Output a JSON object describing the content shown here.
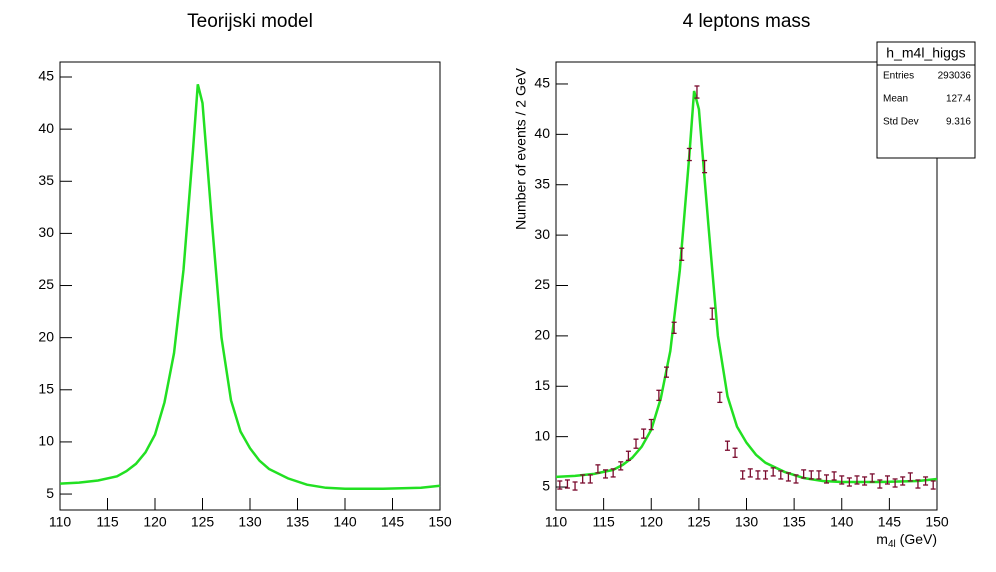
{
  "chart_data": [
    {
      "type": "line",
      "title": "Teorijski model",
      "xlim": [
        110,
        150
      ],
      "xticks": [
        110,
        115,
        120,
        125,
        130,
        135,
        140,
        145,
        150
      ],
      "ylim": [
        3.47,
        46.44
      ],
      "yticks": [
        5,
        10,
        15,
        20,
        25,
        30,
        35,
        40,
        45
      ],
      "series": [
        {
          "color": "#22e022",
          "x": [
            110,
            112,
            114,
            116,
            117,
            118,
            119,
            120,
            121,
            122,
            123,
            124,
            124.5,
            125,
            126,
            127,
            128,
            129,
            130,
            131,
            132,
            134,
            136,
            138,
            140,
            142,
            144,
            146,
            148,
            150
          ],
          "values": [
            6.0,
            6.1,
            6.3,
            6.7,
            7.2,
            7.9,
            9.0,
            10.7,
            13.8,
            18.5,
            26.5,
            38.0,
            44.3,
            42.5,
            31.0,
            20.0,
            14.0,
            11.0,
            9.4,
            8.2,
            7.4,
            6.5,
            5.9,
            5.6,
            5.5,
            5.5,
            5.5,
            5.55,
            5.6,
            5.8
          ]
        }
      ]
    },
    {
      "type": "line",
      "title": "4 leptons mass",
      "x_label": [
        "m",
        "4l",
        " (GeV)"
      ],
      "y_label": "Number of events / 2 GeV",
      "xlim": [
        110,
        150
      ],
      "xticks": [
        110,
        115,
        120,
        125,
        130,
        135,
        140,
        145,
        150
      ],
      "ylim": [
        2.72,
        47.18
      ],
      "yticks": [
        5,
        10,
        15,
        20,
        25,
        30,
        35,
        40,
        45
      ],
      "series": [
        {
          "color": "#22e022",
          "x": [
            110,
            112,
            114,
            116,
            117,
            118,
            119,
            120,
            121,
            122,
            123,
            124,
            124.5,
            125,
            126,
            127,
            128,
            129,
            130,
            131,
            132,
            134,
            136,
            138,
            140,
            142,
            144,
            146,
            148,
            150
          ],
          "values": [
            6.0,
            6.1,
            6.3,
            6.7,
            7.2,
            7.9,
            9.0,
            10.7,
            13.8,
            18.5,
            26.5,
            38.0,
            44.3,
            42.5,
            31.0,
            20.0,
            14.0,
            11.0,
            9.4,
            8.2,
            7.4,
            6.5,
            5.9,
            5.6,
            5.5,
            5.5,
            5.5,
            5.55,
            5.6,
            5.8
          ]
        }
      ],
      "points": {
        "color": "#7a0b2e",
        "x": [
          110.4,
          111.2,
          112.0,
          112.8,
          113.6,
          114.4,
          115.2,
          116.0,
          116.8,
          117.6,
          118.4,
          119.2,
          120.0,
          120.8,
          121.6,
          122.4,
          123.2,
          124.0,
          124.8,
          125.6,
          126.4,
          127.2,
          128.0,
          128.8,
          129.6,
          130.4,
          131.2,
          132.0,
          132.8,
          133.6,
          134.4,
          135.2,
          136.0,
          136.8,
          137.6,
          138.4,
          139.2,
          140.0,
          140.8,
          141.6,
          142.4,
          143.2,
          144.0,
          144.8,
          145.6,
          146.4,
          147.2,
          148.0,
          148.8,
          149.6
        ],
        "values": [
          5.2,
          5.3,
          5.1,
          5.8,
          5.8,
          6.8,
          6.3,
          6.4,
          7.1,
          8.1,
          9.3,
          10.3,
          11.2,
          14.1,
          16.4,
          20.8,
          28.1,
          38.0,
          44.2,
          36.8,
          22.2,
          13.9,
          9.1,
          8.4,
          6.2,
          6.4,
          6.2,
          6.2,
          6.5,
          6.2,
          6.0,
          5.8,
          6.3,
          6.2,
          6.2,
          5.8,
          6.1,
          5.7,
          5.5,
          5.7,
          5.6,
          5.9,
          5.3,
          5.7,
          5.4,
          5.6,
          6.0,
          5.3,
          5.6,
          5.2
        ],
        "errors": [
          0.4,
          0.4,
          0.4,
          0.4,
          0.4,
          0.4,
          0.4,
          0.4,
          0.4,
          0.45,
          0.45,
          0.45,
          0.5,
          0.5,
          0.5,
          0.55,
          0.6,
          0.6,
          0.6,
          0.6,
          0.55,
          0.5,
          0.45,
          0.45,
          0.4,
          0.4,
          0.4,
          0.4,
          0.4,
          0.4,
          0.4,
          0.4,
          0.4,
          0.4,
          0.4,
          0.4,
          0.4,
          0.4,
          0.4,
          0.4,
          0.4,
          0.4,
          0.4,
          0.4,
          0.4,
          0.4,
          0.4,
          0.4,
          0.4,
          0.4
        ]
      },
      "stats": {
        "title": "h_m4l_higgs",
        "rows": [
          {
            "label": "Entries",
            "value": 293036
          },
          {
            "label": "Mean",
            "value": 127.4
          },
          {
            "label": "Std Dev",
            "value": 9.316
          }
        ]
      }
    }
  ]
}
